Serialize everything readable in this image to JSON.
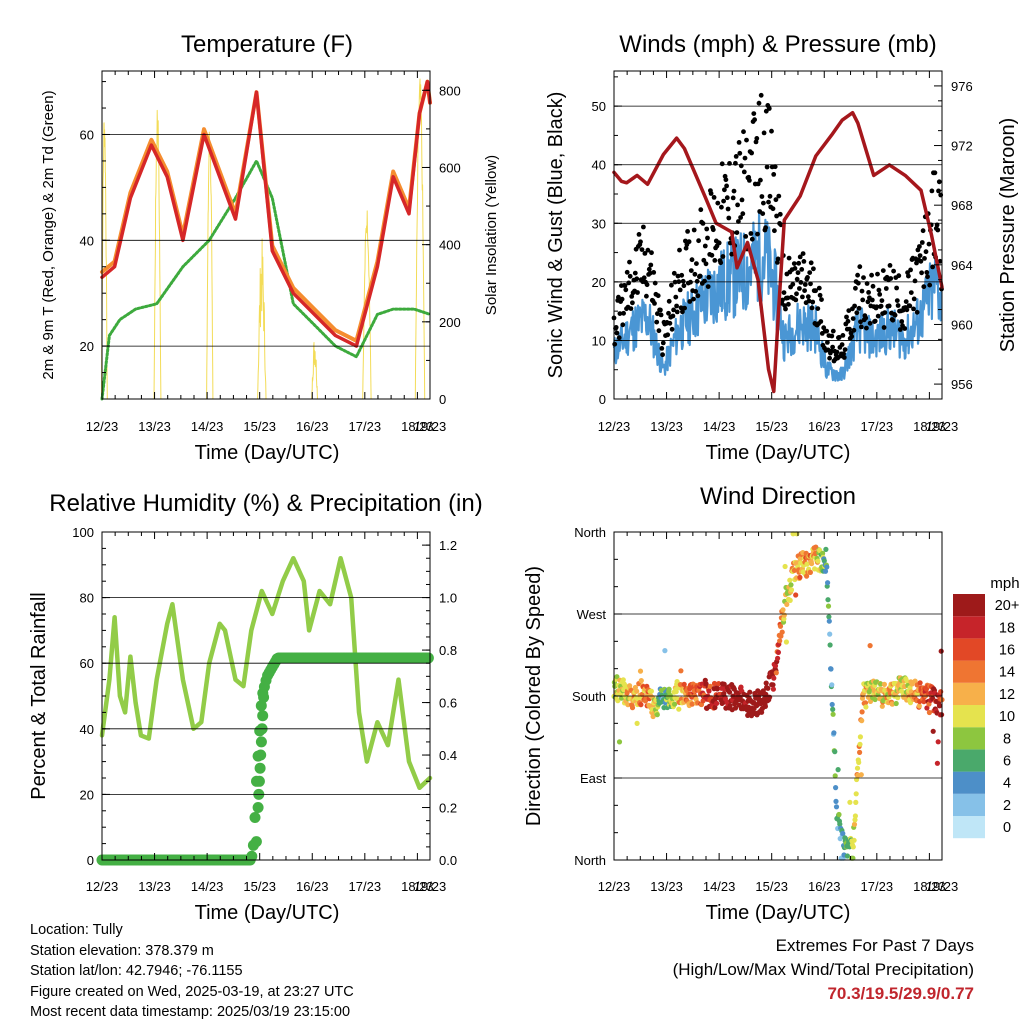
{
  "colors": {
    "temp2m": "#d62728",
    "temp9m": "#f58d2f",
    "dewpoint": "#3daa3d",
    "solar": "#f3dc58",
    "wind": "#4a96d4",
    "gust": "#000000",
    "pressure": "#a5171c",
    "rh": "#92cc48",
    "precip": "#44b044"
  },
  "x_tick_labels": [
    "12/23",
    "13/23",
    "14/23",
    "15/23",
    "16/23",
    "17/23",
    "18/23",
    "19/23"
  ],
  "chart_data": [
    {
      "id": "temperature",
      "type": "line",
      "title": "Temperature (F)",
      "xlabel": "Time (Day/UTC)",
      "ylabel": "2m & 9m T (Red, Orange) & 2m Td (Green)",
      "ylabel_right": "Solar Insolation (Yellow)",
      "x": [
        12.96,
        13.5,
        14.0,
        14.5,
        15.0,
        15.5,
        16.0,
        16.5,
        17.0,
        17.5,
        18.0,
        18.5,
        19.0
      ],
      "ylim": [
        10,
        72
      ],
      "yticks": [
        20,
        40,
        60
      ],
      "yticks_labels": [
        "20",
        "40",
        "60"
      ],
      "y2lim": [
        0,
        850
      ],
      "y2ticks_labels": [
        "0",
        "200",
        "400",
        "600",
        "800"
      ],
      "series": [
        {
          "name": "2m T",
          "points": [
            [
              12.96,
              33
            ],
            [
              13.2,
              35
            ],
            [
              13.5,
              48
            ],
            [
              13.9,
              58
            ],
            [
              14.2,
              52
            ],
            [
              14.5,
              40
            ],
            [
              14.9,
              60
            ],
            [
              15.2,
              52
            ],
            [
              15.5,
              44
            ],
            [
              15.9,
              68
            ],
            [
              16.2,
              38
            ],
            [
              16.6,
              30
            ],
            [
              17.0,
              26
            ],
            [
              17.4,
              22
            ],
            [
              17.8,
              20
            ],
            [
              18.2,
              35
            ],
            [
              18.5,
              52
            ],
            [
              18.8,
              45
            ],
            [
              19.0,
              64
            ],
            [
              19.15,
              70
            ],
            [
              19.2,
              66
            ]
          ]
        },
        {
          "name": "9m T",
          "points": [
            [
              12.96,
              34
            ],
            [
              13.2,
              36
            ],
            [
              13.5,
              49
            ],
            [
              13.9,
              59
            ],
            [
              14.2,
              53
            ],
            [
              14.5,
              41
            ],
            [
              14.9,
              61
            ],
            [
              15.2,
              53
            ],
            [
              15.5,
              45
            ],
            [
              15.9,
              68
            ],
            [
              16.2,
              39
            ],
            [
              16.6,
              31
            ],
            [
              17.0,
              27
            ],
            [
              17.4,
              23
            ],
            [
              17.8,
              21
            ],
            [
              18.2,
              36
            ],
            [
              18.5,
              53
            ],
            [
              18.8,
              46
            ],
            [
              19.0,
              64
            ],
            [
              19.15,
              70
            ],
            [
              19.2,
              66
            ]
          ]
        },
        {
          "name": "2m Td",
          "points": [
            [
              12.96,
              10
            ],
            [
              13.1,
              22
            ],
            [
              13.3,
              25
            ],
            [
              13.6,
              27
            ],
            [
              14.0,
              28
            ],
            [
              14.5,
              35
            ],
            [
              15.0,
              40
            ],
            [
              15.5,
              48
            ],
            [
              15.9,
              55
            ],
            [
              16.2,
              48
            ],
            [
              16.6,
              28
            ],
            [
              17.0,
              24
            ],
            [
              17.4,
              20
            ],
            [
              17.8,
              18
            ],
            [
              18.2,
              26
            ],
            [
              18.5,
              27
            ],
            [
              18.9,
              27
            ],
            [
              19.2,
              26
            ]
          ]
        }
      ],
      "solar_days": [
        [
          12.95,
          13.06,
          760
        ],
        [
          13.95,
          14.08,
          780
        ],
        [
          14.95,
          15.07,
          730
        ],
        [
          15.92,
          16.08,
          420
        ],
        [
          16.95,
          17.06,
          170
        ],
        [
          17.92,
          18.08,
          500
        ],
        [
          18.92,
          19.1,
          840
        ]
      ]
    },
    {
      "id": "winds",
      "type": "scatter",
      "title": "Winds (mph) & Pressure (mb)",
      "xlabel": "Time (Day/UTC)",
      "ylabel": "Sonic Wind & Gust (Blue, Black)",
      "ylabel_right": "Station Pressure (Maroon)",
      "ylim": [
        0,
        56
      ],
      "yticks_labels": [
        "0",
        "10",
        "20",
        "30",
        "40",
        "50"
      ],
      "y2lim": [
        955,
        977
      ],
      "y2ticks_labels": [
        "956",
        "960",
        "964",
        "968",
        "972",
        "976"
      ],
      "wind_mean_points": [
        [
          12.96,
          8
        ],
        [
          13.3,
          12
        ],
        [
          13.6,
          14
        ],
        [
          13.9,
          5
        ],
        [
          14.2,
          12
        ],
        [
          14.5,
          15
        ],
        [
          14.8,
          18
        ],
        [
          15.1,
          20
        ],
        [
          15.5,
          22
        ],
        [
          15.8,
          25
        ],
        [
          16.0,
          20
        ],
        [
          16.2,
          10
        ],
        [
          16.5,
          13
        ],
        [
          16.8,
          12
        ],
        [
          17.0,
          5
        ],
        [
          17.3,
          4
        ],
        [
          17.6,
          12
        ],
        [
          17.9,
          10
        ],
        [
          18.2,
          12
        ],
        [
          18.5,
          10
        ],
        [
          18.8,
          14
        ],
        [
          19.1,
          20
        ],
        [
          19.2,
          16
        ]
      ],
      "gust_mean_points": [
        [
          12.96,
          12
        ],
        [
          13.3,
          20
        ],
        [
          13.6,
          24
        ],
        [
          13.9,
          10
        ],
        [
          14.2,
          20
        ],
        [
          14.5,
          24
        ],
        [
          14.8,
          28
        ],
        [
          15.1,
          32
        ],
        [
          15.5,
          36
        ],
        [
          15.8,
          42
        ],
        [
          16.0,
          36
        ],
        [
          16.2,
          18
        ],
        [
          16.5,
          20
        ],
        [
          16.8,
          18
        ],
        [
          17.0,
          10
        ],
        [
          17.3,
          8
        ],
        [
          17.6,
          18
        ],
        [
          17.9,
          16
        ],
        [
          18.2,
          18
        ],
        [
          18.5,
          16
        ],
        [
          18.8,
          22
        ],
        [
          19.1,
          32
        ],
        [
          19.2,
          26
        ]
      ],
      "pressure_points": [
        [
          12.96,
          970.2
        ],
        [
          13.1,
          969.6
        ],
        [
          13.2,
          969.5
        ],
        [
          13.4,
          970.0
        ],
        [
          13.6,
          969.4
        ],
        [
          13.9,
          971.4
        ],
        [
          14.15,
          972.5
        ],
        [
          14.3,
          971.8
        ],
        [
          14.7,
          968.5
        ],
        [
          14.9,
          966.8
        ],
        [
          15.2,
          966.2
        ],
        [
          15.3,
          963.8
        ],
        [
          15.5,
          965.5
        ],
        [
          15.7,
          963.0
        ],
        [
          15.9,
          957.0
        ],
        [
          16.0,
          955.5
        ],
        [
          16.1,
          961.5
        ],
        [
          16.2,
          967.0
        ],
        [
          16.5,
          968.6
        ],
        [
          16.8,
          971.3
        ],
        [
          17.1,
          972.7
        ],
        [
          17.3,
          973.7
        ],
        [
          17.5,
          974.2
        ],
        [
          17.6,
          973.5
        ],
        [
          17.9,
          970.0
        ],
        [
          18.2,
          970.7
        ],
        [
          18.5,
          970.0
        ],
        [
          18.8,
          969.0
        ],
        [
          19.0,
          966.0
        ],
        [
          19.2,
          962.5
        ]
      ]
    },
    {
      "id": "rh_precip",
      "type": "line",
      "title": "Relative Humidity (%) & Precipitation (in)",
      "xlabel": "Time (Day/UTC)",
      "ylabel": "Percent & Total Rainfall",
      "ylim": [
        0,
        100
      ],
      "yticks_labels": [
        "0",
        "20",
        "40",
        "60",
        "80",
        "100"
      ],
      "y2lim": [
        0,
        1.25
      ],
      "y2ticks_labels": [
        "0.0",
        "0.2",
        "0.4",
        "0.6",
        "0.8",
        "1.0",
        "1.2"
      ],
      "rh_points": [
        [
          12.96,
          38
        ],
        [
          13.1,
          55
        ],
        [
          13.2,
          74
        ],
        [
          13.3,
          50
        ],
        [
          13.4,
          45
        ],
        [
          13.5,
          62
        ],
        [
          13.6,
          48
        ],
        [
          13.7,
          38
        ],
        [
          13.85,
          37
        ],
        [
          14.0,
          55
        ],
        [
          14.2,
          72
        ],
        [
          14.3,
          78
        ],
        [
          14.5,
          55
        ],
        [
          14.7,
          40
        ],
        [
          14.85,
          42
        ],
        [
          15.0,
          60
        ],
        [
          15.2,
          72
        ],
        [
          15.3,
          70
        ],
        [
          15.5,
          55
        ],
        [
          15.65,
          53
        ],
        [
          15.8,
          70
        ],
        [
          16.0,
          82
        ],
        [
          16.2,
          75
        ],
        [
          16.4,
          85
        ],
        [
          16.6,
          92
        ],
        [
          16.8,
          85
        ],
        [
          16.9,
          70
        ],
        [
          17.1,
          82
        ],
        [
          17.3,
          78
        ],
        [
          17.5,
          92
        ],
        [
          17.7,
          80
        ],
        [
          17.85,
          45
        ],
        [
          18.0,
          30
        ],
        [
          18.2,
          42
        ],
        [
          18.4,
          35
        ],
        [
          18.6,
          55
        ],
        [
          18.8,
          30
        ],
        [
          19.0,
          22
        ],
        [
          19.2,
          25
        ]
      ],
      "precip_points": [
        [
          12.96,
          0.0
        ],
        [
          15.8,
          0.0
        ],
        [
          15.85,
          0.07
        ],
        [
          15.9,
          0.3
        ],
        [
          16.0,
          0.62
        ],
        [
          16.1,
          0.7
        ],
        [
          16.3,
          0.77
        ],
        [
          17.0,
          0.77
        ],
        [
          19.2,
          0.77
        ]
      ]
    },
    {
      "id": "wind_direction",
      "type": "scatter",
      "title": "Wind Direction",
      "xlabel": "Time (Day/UTC)",
      "ylabel": "Direction (Colored By Speed)",
      "ylim": [
        0,
        360
      ],
      "ytick_labels": [
        "North",
        "East",
        "South",
        "West",
        "North"
      ],
      "legend_title": "mph",
      "legend_labels": [
        "0",
        "2",
        "4",
        "6",
        "8",
        "10",
        "12",
        "14",
        "16",
        "18",
        "20+"
      ],
      "legend_colors": [
        "#bfe6f7",
        "#86c1e8",
        "#4d8fc8",
        "#4aa96b",
        "#8dc63f",
        "#e5e34e",
        "#f7b04a",
        "#ef7532",
        "#e24826",
        "#c6242a",
        "#9e1a1a"
      ],
      "direction_points": [
        [
          12.96,
          190
        ],
        [
          13.1,
          185
        ],
        [
          13.3,
          180
        ],
        [
          13.5,
          185
        ],
        [
          13.7,
          170
        ],
        [
          14.0,
          180
        ],
        [
          14.3,
          185
        ],
        [
          14.6,
          180
        ],
        [
          15.0,
          180
        ],
        [
          15.3,
          178
        ],
        [
          15.6,
          170
        ],
        [
          15.8,
          175
        ],
        [
          16.0,
          200
        ],
        [
          16.2,
          280
        ],
        [
          16.4,
          320
        ],
        [
          16.6,
          325
        ],
        [
          16.8,
          330
        ],
        [
          17.0,
          330
        ],
        [
          17.2,
          50
        ],
        [
          17.3,
          20
        ],
        [
          17.5,
          10
        ],
        [
          17.7,
          180
        ],
        [
          17.9,
          185
        ],
        [
          18.2,
          180
        ],
        [
          18.5,
          190
        ],
        [
          18.8,
          180
        ],
        [
          19.1,
          175
        ],
        [
          19.2,
          172
        ]
      ]
    }
  ],
  "info": {
    "location": "Location: Tully",
    "elevation": "Station elevation: 378.379 m",
    "latlon": "Station lat/lon: 42.7946; -76.1155",
    "created": "Figure created on Wed, 2025-03-19, at 23:27 UTC",
    "recent": "Most recent data timestamp: 2025/03/19 23:15:00"
  },
  "extremes": {
    "title": "Extremes For Past 7 Days",
    "subtitle": "(High/Low/Max Wind/Total Precipitation)",
    "values": "70.3/19.5/29.9/0.77"
  }
}
